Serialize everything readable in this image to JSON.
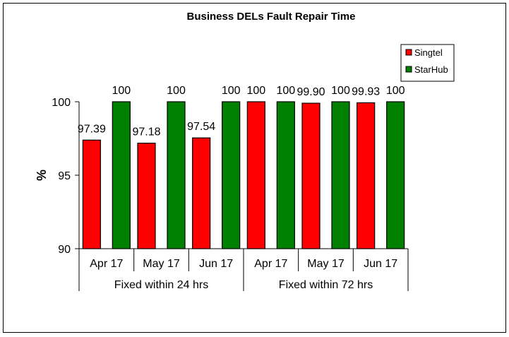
{
  "chart_data": {
    "type": "bar",
    "title": "Business DELs Fault Repair Time",
    "ylabel": "%",
    "xlabel": "",
    "ylim": [
      90,
      100
    ],
    "yticks": [
      90,
      95,
      100
    ],
    "grid": false,
    "legend_position": "top-right",
    "categories": [
      "Apr 17",
      "May 17",
      "Jun 17",
      "Apr 17",
      "May 17",
      "Jun 17"
    ],
    "groups": [
      {
        "label": "Fixed within 24 hrs",
        "span": 3
      },
      {
        "label": "Fixed within 72 hrs",
        "span": 3
      }
    ],
    "series": [
      {
        "name": "Singtel",
        "color": "#ff0000",
        "values": [
          97.39,
          97.18,
          97.54,
          100,
          99.9,
          99.93
        ],
        "labels": [
          "97.39",
          "97.18",
          "97.54",
          "100",
          "99.90",
          "99.93"
        ]
      },
      {
        "name": "StarHub",
        "color": "#008000",
        "values": [
          100,
          100,
          100,
          100,
          100,
          100
        ],
        "labels": [
          "100",
          "100",
          "100",
          "100",
          "100",
          "100"
        ]
      }
    ]
  }
}
